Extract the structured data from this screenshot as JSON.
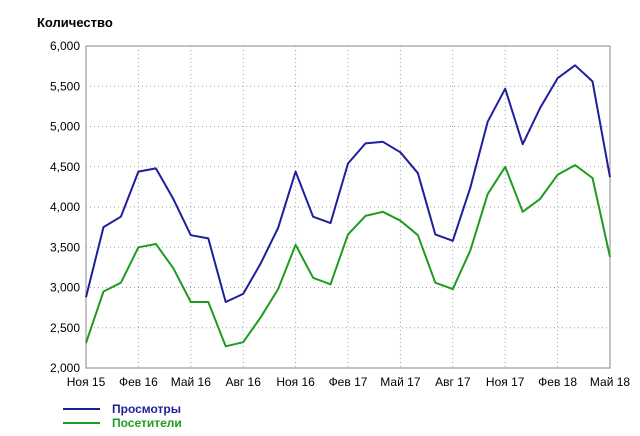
{
  "chart_data": {
    "type": "line",
    "ylabel": "Количество",
    "ylim": [
      2000,
      6000
    ],
    "yticks": [
      {
        "value": 2000,
        "label": "2,000"
      },
      {
        "value": 2500,
        "label": "2,500"
      },
      {
        "value": 3000,
        "label": "3,000"
      },
      {
        "value": 3500,
        "label": "3,500"
      },
      {
        "value": 4000,
        "label": "4,000"
      },
      {
        "value": 4500,
        "label": "4,500"
      },
      {
        "value": 5000,
        "label": "5,000"
      },
      {
        "value": 5500,
        "label": "5,500"
      },
      {
        "value": 6000,
        "label": "6,000"
      }
    ],
    "x": [
      "2015-11",
      "2015-12",
      "2016-01",
      "2016-02",
      "2016-03",
      "2016-04",
      "2016-05",
      "2016-06",
      "2016-07",
      "2016-08",
      "2016-09",
      "2016-10",
      "2016-11",
      "2016-12",
      "2017-01",
      "2017-02",
      "2017-03",
      "2017-04",
      "2017-05",
      "2017-06",
      "2017-07",
      "2017-08",
      "2017-09",
      "2017-10",
      "2017-11",
      "2017-12",
      "2018-01",
      "2018-02",
      "2018-03",
      "2018-04",
      "2018-05"
    ],
    "xticks": [
      {
        "x": "2015-11",
        "label": "Ноя 15"
      },
      {
        "x": "2016-02",
        "label": "Фев 16"
      },
      {
        "x": "2016-05",
        "label": "Май 16"
      },
      {
        "x": "2016-08",
        "label": "Авг 16"
      },
      {
        "x": "2016-11",
        "label": "Ноя 16"
      },
      {
        "x": "2017-02",
        "label": "Фев 17"
      },
      {
        "x": "2017-05",
        "label": "Май 17"
      },
      {
        "x": "2017-08",
        "label": "Авг 17"
      },
      {
        "x": "2017-11",
        "label": "Ноя 17"
      },
      {
        "x": "2018-02",
        "label": "Фев 18"
      },
      {
        "x": "2018-05",
        "label": "Май 18"
      }
    ],
    "series": [
      {
        "name": "Просмотры",
        "color": "#1f1f9c",
        "values": [
          2880,
          3750,
          3880,
          4440,
          4480,
          4100,
          3650,
          3610,
          2820,
          2920,
          3300,
          3740,
          4440,
          3880,
          3800,
          4540,
          4790,
          4810,
          4680,
          4420,
          3660,
          3580,
          4240,
          5060,
          5470,
          4780,
          5230,
          5600,
          5760,
          5560,
          4370
        ]
      },
      {
        "name": "Посетители",
        "color": "#1f9c1f",
        "values": [
          2310,
          2950,
          3060,
          3500,
          3540,
          3240,
          2820,
          2820,
          2270,
          2320,
          2630,
          2980,
          3530,
          3120,
          3040,
          3660,
          3890,
          3940,
          3830,
          3650,
          3060,
          2980,
          3460,
          4160,
          4500,
          3940,
          4100,
          4400,
          4520,
          4360,
          3380
        ]
      }
    ],
    "grid": true,
    "legend_position": "bottom-left"
  }
}
